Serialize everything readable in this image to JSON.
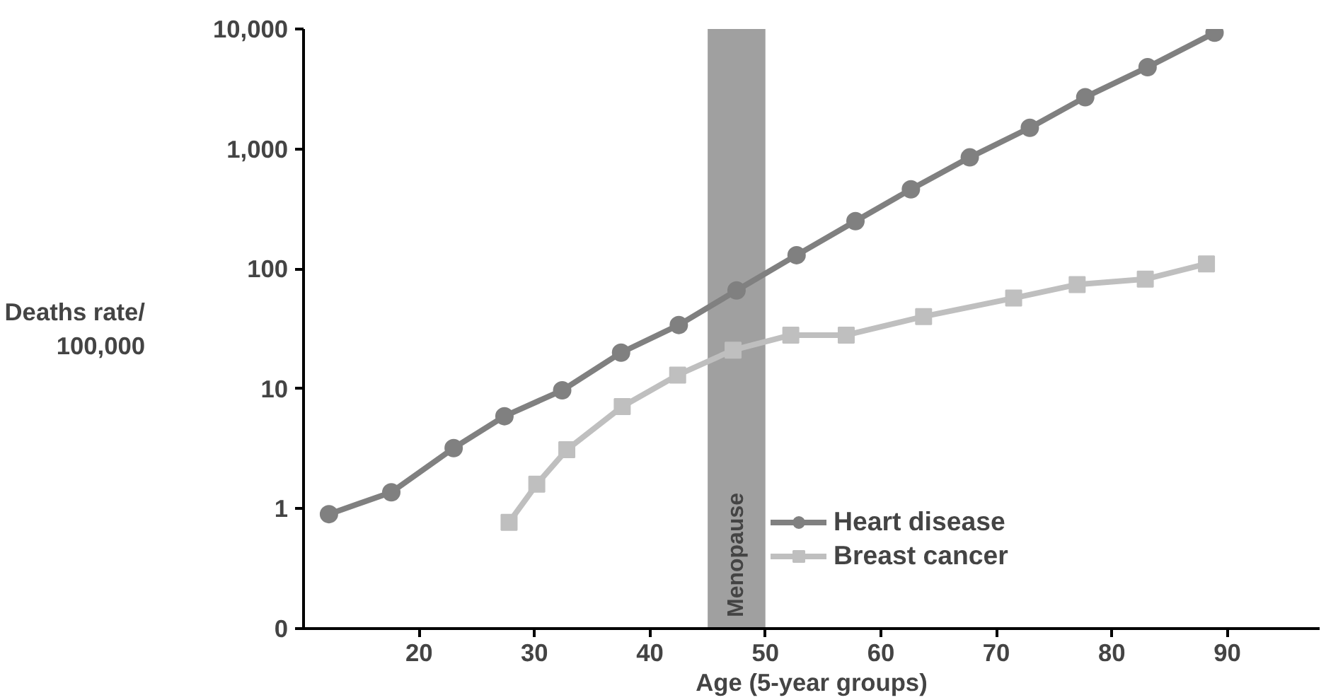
{
  "chart_data": {
    "type": "line",
    "xlabel": "Age (5-year groups)",
    "ylabel": "Deaths rate/\n100,000",
    "series": [
      {
        "name": "Heart disease",
        "color": "#808080",
        "marker": "circle",
        "x": [
          12.2,
          17.6,
          23,
          27.4,
          32.4,
          37.5,
          42.5,
          47.5,
          52.7,
          57.8,
          62.6,
          67.7,
          72.9,
          77.7,
          83.1,
          88.9
        ],
        "values": [
          0.9,
          1.37,
          3.2,
          5.9,
          9.7,
          20,
          34,
          66,
          130,
          250,
          460,
          850,
          1500,
          2700,
          4800,
          9300
        ]
      },
      {
        "name": "Breast cancer",
        "color": "#bfbfbf",
        "marker": "square",
        "x": [
          27.8,
          30.2,
          32.8,
          37.6,
          42.4,
          47.2,
          52.2,
          57,
          63.7,
          71.5,
          77,
          82.9,
          88.2
        ],
        "values": [
          0.77,
          1.6,
          3.1,
          7.1,
          13,
          21,
          28,
          28,
          40,
          57,
          74,
          82,
          110
        ]
      }
    ],
    "log": "y",
    "xlim": [
      10,
      98
    ],
    "ylim": [
      0.1,
      10000
    ],
    "xticks": [
      20,
      30,
      40,
      50,
      60,
      70,
      80,
      90
    ],
    "yticks": [
      {
        "value": 0.1,
        "label": "0"
      },
      1,
      10,
      {
        "value": 100,
        "label": "100"
      },
      {
        "value": 1000,
        "label": "1,000"
      },
      {
        "value": 10000,
        "label": "10,000"
      }
    ],
    "bands": [
      {
        "axis": "x",
        "from": 45,
        "to": 50,
        "label": "Menopause",
        "color": "#a0a0a0"
      }
    ],
    "grid": false,
    "legend": "bottom right",
    "line_style": "solid"
  }
}
